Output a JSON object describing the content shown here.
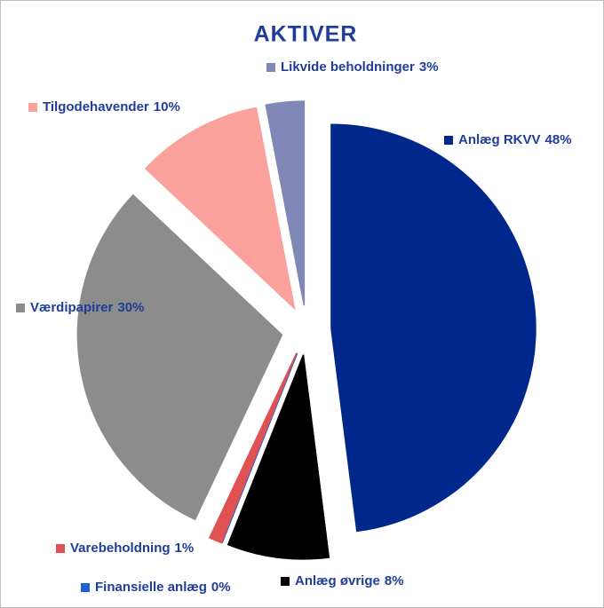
{
  "chart_data": {
    "type": "pie",
    "title": "AKTIVER",
    "categories": [
      "Anlæg RKVV",
      "Anlæg øvrige",
      "Finansielle anlæg",
      "Varebeholdning",
      "Værdipapirer",
      "Tilgodehavender",
      "Likvide beholdninger"
    ],
    "values": [
      48,
      8,
      0,
      1,
      30,
      10,
      3
    ],
    "value_labels": [
      "48%",
      "8%",
      "0%",
      "1%",
      "30%",
      "10%",
      "3%"
    ],
    "colors": [
      "#00288c",
      "#000000",
      "#1f5fd6",
      "#e05252",
      "#8c8c8c",
      "#f9a19a",
      "#8088b8"
    ]
  }
}
